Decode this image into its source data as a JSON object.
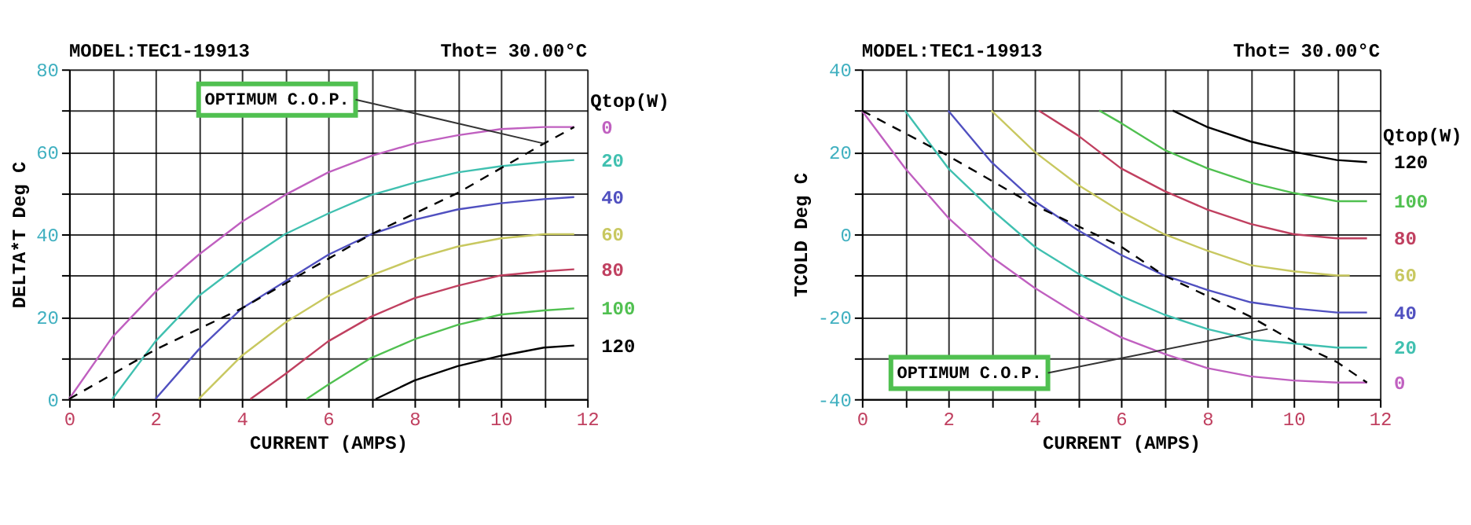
{
  "chart_data": [
    {
      "type": "line",
      "title": "MODEL:TEC1-19913",
      "subtitle": "Thot= 30.00°C",
      "xlabel": "CURRENT (AMPS)",
      "ylabel": "DELTA*T Deg C",
      "legend_title": "Qtop(W)",
      "legend": "right",
      "grid": true,
      "marker": "none",
      "xlim": [
        0,
        12
      ],
      "xticks": [
        0,
        {
          "value": 1,
          "label": null
        },
        2,
        {
          "value": 3,
          "label": null
        },
        4,
        {
          "value": 5,
          "label": null
        },
        6,
        {
          "value": 7,
          "label": null
        },
        8,
        {
          "value": 9,
          "label": null
        },
        10,
        {
          "value": 11,
          "label": null
        },
        12
      ],
      "ylim": [
        0,
        80
      ],
      "yticks": [
        0,
        {
          "value": 10,
          "label": null
        },
        20,
        {
          "value": 30,
          "label": null
        },
        40,
        {
          "value": 50,
          "label": null
        },
        60,
        {
          "value": 70,
          "label": null
        },
        80
      ],
      "series": [
        {
          "name": "0",
          "color": "#c060c0",
          "x": [
            0,
            1,
            2,
            3,
            4,
            5,
            6,
            7,
            8,
            9,
            10,
            11,
            11.7
          ],
          "values": [
            0,
            15,
            26,
            35,
            43,
            49.5,
            55,
            59,
            62,
            64,
            65.5,
            66,
            66
          ]
        },
        {
          "name": "20",
          "color": "#40c0b0",
          "x": [
            1,
            2,
            3,
            4,
            5,
            6,
            7,
            8,
            9,
            10,
            11,
            11.7
          ],
          "values": [
            0,
            14,
            25,
            33,
            40,
            45,
            49.5,
            52.5,
            55,
            56.5,
            57.5,
            58
          ]
        },
        {
          "name": "40",
          "color": "#5050c0",
          "x": [
            2,
            3,
            4,
            5,
            6,
            7,
            8,
            9,
            10,
            11,
            11.7
          ],
          "values": [
            0,
            12,
            22,
            28.5,
            35,
            40,
            43.5,
            46,
            47.5,
            48.5,
            49
          ]
        },
        {
          "name": "60",
          "color": "#c8c860",
          "x": [
            3,
            4,
            5,
            6,
            7,
            8,
            9,
            10,
            11,
            11.7
          ],
          "values": [
            0,
            10.5,
            18.5,
            25,
            30,
            34,
            37,
            39,
            40,
            40
          ]
        },
        {
          "name": "80",
          "color": "#c04060",
          "x": [
            4.2,
            5,
            6,
            7,
            8,
            9,
            10,
            11,
            11.7
          ],
          "values": [
            0,
            6,
            14,
            20,
            24.5,
            27.5,
            30,
            31,
            31.5
          ]
        },
        {
          "name": "100",
          "color": "#50c050",
          "x": [
            5.5,
            6,
            7,
            8,
            9,
            10,
            11,
            11.7
          ],
          "values": [
            0,
            3.5,
            10,
            14.5,
            18,
            20.5,
            21.5,
            22
          ]
        },
        {
          "name": "120",
          "color": "#000000",
          "x": [
            7.1,
            8,
            9,
            10,
            11,
            11.7
          ],
          "values": [
            0,
            4.5,
            8,
            10.5,
            12.5,
            13
          ]
        },
        {
          "color": "#000000",
          "line_style": "dashed",
          "x": [
            0,
            2,
            4,
            7,
            9,
            11,
            11.7
          ],
          "values": [
            0,
            12,
            22,
            40,
            50,
            62,
            66
          ]
        }
      ],
      "annotations": [
        {
          "text": "OPTIMUM C.O.P.",
          "x": 11,
          "y": 62
        }
      ]
    },
    {
      "type": "line",
      "title": "MODEL:TEC1-19913",
      "subtitle": "Thot= 30.00°C",
      "xlabel": "CURRENT (AMPS)",
      "ylabel": "TCOLD Deg C",
      "legend_title": "Qtop(W)",
      "legend": "right",
      "grid": true,
      "marker": "none",
      "xlim": [
        0,
        12
      ],
      "xticks": [
        0,
        {
          "value": 1,
          "label": null
        },
        2,
        {
          "value": 3,
          "label": null
        },
        4,
        {
          "value": 5,
          "label": null
        },
        6,
        {
          "value": 7,
          "label": null
        },
        8,
        {
          "value": 9,
          "label": null
        },
        10,
        {
          "value": 11,
          "label": null
        },
        12
      ],
      "ylim": [
        -40,
        40
      ],
      "yticks": [
        -40,
        {
          "value": -30,
          "label": null
        },
        -20,
        {
          "value": -10,
          "label": null
        },
        0,
        {
          "value": 10,
          "label": null
        },
        20,
        {
          "value": 30,
          "label": null
        },
        40
      ],
      "series": [
        {
          "name": "0",
          "color": "#c060c0",
          "x": [
            0,
            1,
            2,
            3,
            4,
            5,
            6,
            7,
            8,
            9,
            10,
            11,
            11.7
          ],
          "values": [
            30,
            16,
            4,
            -5.5,
            -13,
            -19.5,
            -25,
            -29,
            -32.5,
            -34.5,
            -35.5,
            -36,
            -36
          ]
        },
        {
          "name": "20",
          "color": "#40c0b0",
          "x": [
            1,
            2,
            3,
            4,
            5,
            6,
            7,
            8,
            9,
            10,
            11,
            11.7
          ],
          "values": [
            30,
            16,
            6,
            -3,
            -9.5,
            -15,
            -19.5,
            -23,
            -25.5,
            -26.5,
            -27.5,
            -27.5
          ]
        },
        {
          "name": "40",
          "color": "#5050c0",
          "x": [
            2,
            3,
            4,
            5,
            6,
            7,
            8,
            9,
            10,
            11,
            11.7
          ],
          "values": [
            30,
            17.5,
            8,
            1,
            -5,
            -10,
            -13.5,
            -16.5,
            -18,
            -19,
            -19
          ]
        },
        {
          "name": "60",
          "color": "#c8c860",
          "x": [
            3,
            4,
            5,
            6,
            7,
            8,
            9,
            10,
            11,
            11.3
          ],
          "values": [
            30,
            20,
            12,
            5.5,
            0,
            -4,
            -7.5,
            -9,
            -10,
            -10
          ]
        },
        {
          "name": "80",
          "color": "#c04060",
          "x": [
            4.1,
            5,
            6,
            7,
            8,
            9,
            10,
            11,
            11.7
          ],
          "values": [
            30,
            24,
            16,
            10.5,
            6,
            2.5,
            0,
            -1,
            -1
          ]
        },
        {
          "name": "100",
          "color": "#50c050",
          "x": [
            5.5,
            6,
            7,
            8,
            9,
            10,
            11,
            11.7
          ],
          "values": [
            30,
            27,
            20.5,
            16,
            12.5,
            10,
            8,
            8
          ]
        },
        {
          "name": "120",
          "color": "#000000",
          "x": [
            7.2,
            8,
            9,
            10,
            11,
            11.7
          ],
          "values": [
            30,
            26,
            22.5,
            20,
            18,
            17.5
          ]
        },
        {
          "color": "#000000",
          "line_style": "dashed",
          "x": [
            0,
            2,
            4,
            6,
            7,
            8,
            9,
            10,
            11,
            11.7
          ],
          "values": [
            30,
            19,
            7,
            -3,
            -10,
            -15,
            -20,
            -26,
            -31,
            -36
          ]
        }
      ],
      "annotations": [
        {
          "text": "OPTIMUM C.O.P.",
          "x": 9.4,
          "y": -23
        }
      ]
    }
  ]
}
